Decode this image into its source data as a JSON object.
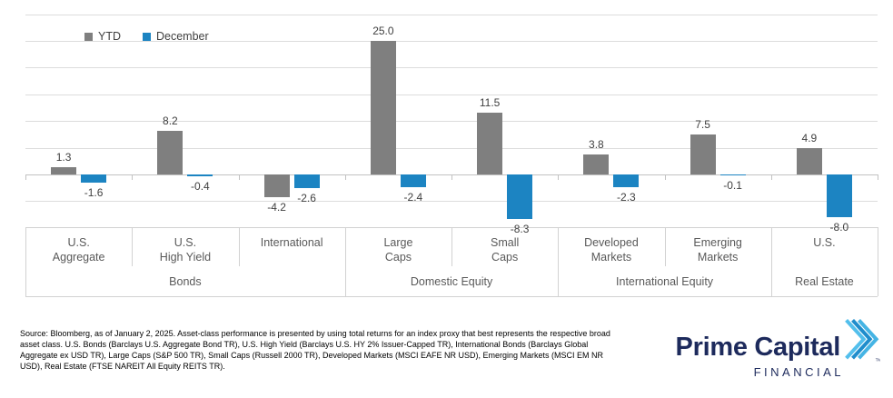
{
  "chart_data": {
    "type": "bar",
    "title": "",
    "categories": [
      "U.S.\nAggregate",
      "U.S.\nHigh Yield",
      "International",
      "Large\nCaps",
      "Small\nCaps",
      "Developed\nMarkets",
      "Emerging\nMarkets",
      "U.S."
    ],
    "category_groups": [
      {
        "label": "Bonds",
        "span": 3
      },
      {
        "label": "Domestic Equity",
        "span": 2
      },
      {
        "label": "International Equity",
        "span": 2
      },
      {
        "label": "Real Estate",
        "span": 1
      }
    ],
    "series": [
      {
        "name": "YTD",
        "color": "#7f7f7f",
        "values": [
          1.3,
          8.2,
          -4.2,
          25.0,
          11.5,
          3.8,
          7.5,
          4.9
        ]
      },
      {
        "name": "December",
        "color": "#1c84c2",
        "values": [
          -1.6,
          -0.4,
          -2.6,
          -2.4,
          -8.3,
          -2.3,
          -0.1,
          -8.0
        ]
      }
    ],
    "ylim": [
      -10,
      30
    ],
    "gridline_step": 5,
    "grid": true,
    "legend_position": "top-left",
    "data_label_format": "0.0"
  },
  "footer": {
    "source_text": "Source: Bloomberg, as of January 2, 2025. Asset-class performance is presented by using total returns for an index proxy that best represents the respective broad asset class. U.S. Bonds (Barclays U.S. Aggregate Bond TR), U.S. High Yield (Barclays U.S. HY 2% Issuer-Capped TR), International Bonds (Barclays Global Aggregate ex USD TR), Large Caps (S&P 500 TR), Small Caps (Russell 2000 TR), Developed Markets (MSCI EAFE NR USD), Emerging Markets (MSCI EM NR USD), Real Estate (FTSE NAREIT All Equity REITS TR)."
  },
  "logo": {
    "name": "Prime Capital",
    "subtitle": "FINANCIAL",
    "trademark": "TM"
  },
  "colors": {
    "ytd_bar": "#7f7f7f",
    "december_bar": "#1c84c2",
    "gridline": "#dcdcdc",
    "zero_line": "#c2c2c2",
    "band_border": "#d2d2d2",
    "data_label": "#404040",
    "category_label": "#595959",
    "logo_navy": "#1d2a5c",
    "logo_blue_light": "#53bfec",
    "logo_blue_mid": "#1f8dcc",
    "logo_blue_alt": "#45b4e4"
  }
}
